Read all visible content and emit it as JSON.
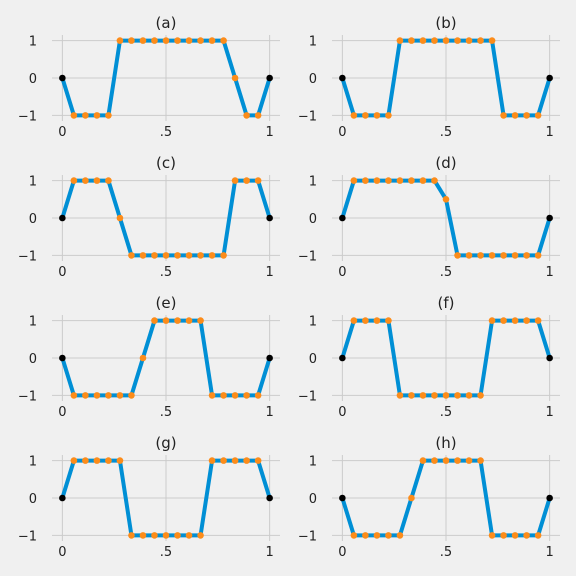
{
  "colors": {
    "background": "#f0f0f0",
    "line": "#008fd5",
    "interior_point": "#fc8c1a",
    "endpoint": "#000000",
    "grid": "#cbcbcb"
  },
  "chart_data": [
    {
      "type": "line",
      "title": "(a)",
      "x": [
        0,
        0.0556,
        0.1111,
        0.1667,
        0.2222,
        0.2778,
        0.3333,
        0.3889,
        0.4444,
        0.5,
        0.5556,
        0.6111,
        0.6667,
        0.7222,
        0.7778,
        0.8333,
        0.8889,
        0.9444,
        1
      ],
      "values": [
        0,
        -1,
        -1,
        -1,
        -1,
        1,
        1,
        1,
        1,
        1,
        1,
        1,
        1,
        1,
        1,
        0,
        -1,
        -1,
        0
      ],
      "xticks": [
        0,
        0.5,
        1
      ],
      "xtick_labels": [
        "0",
        ".5",
        "1"
      ],
      "yticks": [
        -1,
        0,
        1
      ],
      "ytick_labels": [
        "−1",
        "0",
        "1"
      ],
      "xlim": [
        -0.05,
        1.05
      ],
      "ylim": [
        -1.15,
        1.15
      ],
      "grid": true
    },
    {
      "type": "line",
      "title": "(b)",
      "x": [
        0,
        0.0556,
        0.1111,
        0.1667,
        0.2222,
        0.2778,
        0.3333,
        0.3889,
        0.4444,
        0.5,
        0.5556,
        0.6111,
        0.6667,
        0.7222,
        0.7778,
        0.8333,
        0.8889,
        0.9444,
        1
      ],
      "values": [
        0,
        -1,
        -1,
        -1,
        -1,
        1,
        1,
        1,
        1,
        1,
        1,
        1,
        1,
        1,
        -1,
        -1,
        -1,
        -1,
        0
      ],
      "xticks": [
        0,
        0.5,
        1
      ],
      "xtick_labels": [
        "0",
        ".5",
        "1"
      ],
      "yticks": [
        -1,
        0,
        1
      ],
      "ytick_labels": [
        "−1",
        "0",
        "1"
      ],
      "xlim": [
        -0.05,
        1.05
      ],
      "ylim": [
        -1.15,
        1.15
      ],
      "grid": true
    },
    {
      "type": "line",
      "title": "(c)",
      "x": [
        0,
        0.0556,
        0.1111,
        0.1667,
        0.2222,
        0.2778,
        0.3333,
        0.3889,
        0.4444,
        0.5,
        0.5556,
        0.6111,
        0.6667,
        0.7222,
        0.7778,
        0.8333,
        0.8889,
        0.9444,
        1
      ],
      "values": [
        0,
        1,
        1,
        1,
        1,
        0,
        -1,
        -1,
        -1,
        -1,
        -1,
        -1,
        -1,
        -1,
        -1,
        1,
        1,
        1,
        0
      ],
      "xticks": [
        0,
        0.5,
        1
      ],
      "xtick_labels": [
        "0",
        ".5",
        "1"
      ],
      "yticks": [
        -1,
        0,
        1
      ],
      "ytick_labels": [
        "−1",
        "0",
        "1"
      ],
      "xlim": [
        -0.05,
        1.05
      ],
      "ylim": [
        -1.15,
        1.15
      ],
      "grid": true
    },
    {
      "type": "line",
      "title": "(d)",
      "x": [
        0,
        0.0556,
        0.1111,
        0.1667,
        0.2222,
        0.2778,
        0.3333,
        0.3889,
        0.4444,
        0.5,
        0.5556,
        0.6111,
        0.6667,
        0.7222,
        0.7778,
        0.8333,
        0.8889,
        0.9444,
        1
      ],
      "values": [
        0,
        1,
        1,
        1,
        1,
        1,
        1,
        1,
        1,
        0.5,
        -1,
        -1,
        -1,
        -1,
        -1,
        -1,
        -1,
        -1,
        0
      ],
      "xticks": [
        0,
        0.5,
        1
      ],
      "xtick_labels": [
        "0",
        ".5",
        "1"
      ],
      "yticks": [
        -1,
        0,
        1
      ],
      "ytick_labels": [
        "−1",
        "0",
        "1"
      ],
      "xlim": [
        -0.05,
        1.05
      ],
      "ylim": [
        -1.15,
        1.15
      ],
      "grid": true
    },
    {
      "type": "line",
      "title": "(e)",
      "x": [
        0,
        0.0556,
        0.1111,
        0.1667,
        0.2222,
        0.2778,
        0.3333,
        0.3889,
        0.4444,
        0.5,
        0.5556,
        0.6111,
        0.6667,
        0.7222,
        0.7778,
        0.8333,
        0.8889,
        0.9444,
        1
      ],
      "values": [
        0,
        -1,
        -1,
        -1,
        -1,
        -1,
        -1,
        0,
        1,
        1,
        1,
        1,
        1,
        -1,
        -1,
        -1,
        -1,
        -1,
        0
      ],
      "xticks": [
        0,
        0.5,
        1
      ],
      "xtick_labels": [
        "0",
        ".5",
        "1"
      ],
      "yticks": [
        -1,
        0,
        1
      ],
      "ytick_labels": [
        "−1",
        "0",
        "1"
      ],
      "xlim": [
        -0.05,
        1.05
      ],
      "ylim": [
        -1.15,
        1.15
      ],
      "grid": true
    },
    {
      "type": "line",
      "title": "(f)",
      "x": [
        0,
        0.0556,
        0.1111,
        0.1667,
        0.2222,
        0.2778,
        0.3333,
        0.3889,
        0.4444,
        0.5,
        0.5556,
        0.6111,
        0.6667,
        0.7222,
        0.7778,
        0.8333,
        0.8889,
        0.9444,
        1
      ],
      "values": [
        0,
        1,
        1,
        1,
        1,
        -1,
        -1,
        -1,
        -1,
        -1,
        -1,
        -1,
        -1,
        1,
        1,
        1,
        1,
        1,
        0
      ],
      "xticks": [
        0,
        0.5,
        1
      ],
      "xtick_labels": [
        "0",
        ".5",
        "1"
      ],
      "yticks": [
        -1,
        0,
        1
      ],
      "ytick_labels": [
        "−1",
        "0",
        "1"
      ],
      "xlim": [
        -0.05,
        1.05
      ],
      "ylim": [
        -1.15,
        1.15
      ],
      "grid": true
    },
    {
      "type": "line",
      "title": "(g)",
      "x": [
        0,
        0.0556,
        0.1111,
        0.1667,
        0.2222,
        0.2778,
        0.3333,
        0.3889,
        0.4444,
        0.5,
        0.5556,
        0.6111,
        0.6667,
        0.7222,
        0.7778,
        0.8333,
        0.8889,
        0.9444,
        1
      ],
      "values": [
        0,
        1,
        1,
        1,
        1,
        1,
        -1,
        -1,
        -1,
        -1,
        -1,
        -1,
        -1,
        1,
        1,
        1,
        1,
        1,
        0
      ],
      "xticks": [
        0,
        0.5,
        1
      ],
      "xtick_labels": [
        "0",
        ".5",
        "1"
      ],
      "yticks": [
        -1,
        0,
        1
      ],
      "ytick_labels": [
        "−1",
        "0",
        "1"
      ],
      "xlim": [
        -0.05,
        1.05
      ],
      "ylim": [
        -1.15,
        1.15
      ],
      "grid": true
    },
    {
      "type": "line",
      "title": "(h)",
      "x": [
        0,
        0.0556,
        0.1111,
        0.1667,
        0.2222,
        0.2778,
        0.3333,
        0.3889,
        0.4444,
        0.5,
        0.5556,
        0.6111,
        0.6667,
        0.7222,
        0.7778,
        0.8333,
        0.8889,
        0.9444,
        1
      ],
      "values": [
        0,
        -1,
        -1,
        -1,
        -1,
        -1,
        0,
        1,
        1,
        1,
        1,
        1,
        1,
        -1,
        -1,
        -1,
        -1,
        -1,
        0
      ],
      "xticks": [
        0,
        0.5,
        1
      ],
      "xtick_labels": [
        "0",
        ".5",
        "1"
      ],
      "yticks": [
        -1,
        0,
        1
      ],
      "ytick_labels": [
        "−1",
        "0",
        "1"
      ],
      "xlim": [
        -0.05,
        1.05
      ],
      "ylim": [
        -1.15,
        1.15
      ],
      "grid": true
    }
  ]
}
